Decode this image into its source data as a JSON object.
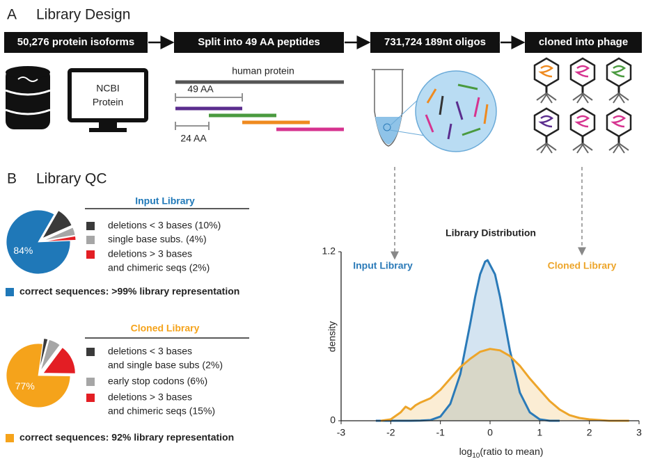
{
  "panel_a": {
    "label": "A",
    "title": "Library Design",
    "steps": [
      "50,276 protein isoforms",
      "Split into 49 AA peptides",
      "731,724 189nt oligos",
      "cloned into phage"
    ],
    "monitor_text": [
      "NCBI",
      "Protein"
    ],
    "protein_label": "human protein",
    "peptide_length": "49 AA",
    "overlap": "24 AA"
  },
  "panel_b": {
    "label": "B",
    "title": "Library QC"
  },
  "chart_data": [
    {
      "type": "pie",
      "title": "Input Library",
      "categories": [
        [
          "correct sequences: >99% library representation"
        ],
        [
          "deletions < 3 bases (10%)"
        ],
        [
          "single base subs. (4%)"
        ],
        [
          "deletions > 3 bases",
          "and chimeric seqs (2%)"
        ]
      ],
      "values": [
        84,
        10,
        4,
        2
      ],
      "value_labels": [
        "84%",
        null,
        null,
        null
      ],
      "colors": [
        "#1f78b8",
        "#3a3a3a",
        "#a6a6a6",
        "#e31e24"
      ]
    },
    {
      "type": "pie",
      "title": "Cloned Library",
      "categories": [
        [
          "correct sequences: 92% library representation"
        ],
        [
          "deletions < 3 bases",
          "and single base subs (2%)"
        ],
        [
          "early stop codons (6%)"
        ],
        [
          "deletions > 3 bases",
          "and chimeric seqs (15%)"
        ]
      ],
      "values": [
        77,
        2,
        6,
        15
      ],
      "value_labels": [
        "77%",
        null,
        null,
        null
      ],
      "colors": [
        "#f5a31b",
        "#3a3a3a",
        "#a6a6a6",
        "#e31e24"
      ]
    },
    {
      "type": "line",
      "title": "Library Distribution",
      "x_label": [
        "log",
        "10",
        "(ratio to mean)"
      ],
      "y_label": "density",
      "xlim": [
        -3,
        3
      ],
      "xticks": [
        -3,
        -2,
        -1,
        0,
        1,
        2,
        3
      ],
      "ylim": [
        0,
        1.2
      ],
      "yticks": [
        0,
        1.2
      ],
      "series": [
        {
          "name": "Input Library",
          "color": "#2a7ab8",
          "x": [
            -2.3,
            -1.6,
            -1.4,
            -1.2,
            -1.0,
            -0.8,
            -0.6,
            -0.4,
            -0.3,
            -0.2,
            -0.1,
            -0.05,
            0.1,
            0.2,
            0.3,
            0.4,
            0.6,
            0.8,
            1.0,
            1.2,
            1.4
          ],
          "values": [
            0,
            0,
            0.001,
            0.005,
            0.03,
            0.12,
            0.33,
            0.69,
            0.88,
            1.04,
            1.13,
            1.14,
            1.04,
            0.88,
            0.69,
            0.5,
            0.2,
            0.06,
            0.01,
            0,
            0
          ]
        },
        {
          "name": "Cloned Library",
          "color": "#eda52a",
          "x": [
            -2.2,
            -2.0,
            -1.8,
            -1.7,
            -1.6,
            -1.5,
            -1.4,
            -1.2,
            -1.0,
            -0.8,
            -0.6,
            -0.4,
            -0.2,
            0,
            0.2,
            0.4,
            0.6,
            0.8,
            1.0,
            1.2,
            1.4,
            1.6,
            1.8,
            2.0,
            2.4,
            2.8
          ],
          "values": [
            0,
            0.01,
            0.06,
            0.1,
            0.08,
            0.11,
            0.13,
            0.16,
            0.22,
            0.3,
            0.38,
            0.44,
            0.49,
            0.51,
            0.5,
            0.46,
            0.39,
            0.3,
            0.22,
            0.14,
            0.08,
            0.04,
            0.02,
            0.01,
            0,
            0
          ]
        }
      ]
    }
  ]
}
